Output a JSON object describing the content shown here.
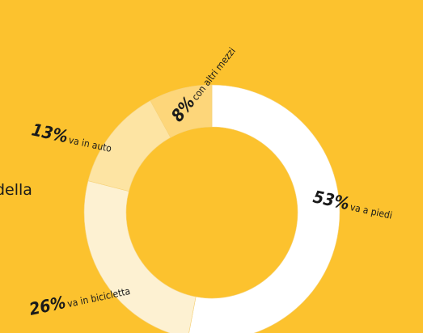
{
  "chart_data": {
    "type": "donut",
    "annotation": "della",
    "categories": [
      "va a piedi",
      "va in bicicletta",
      "va in auto",
      "con altri mezzi"
    ],
    "values": [
      53,
      26,
      13,
      8
    ],
    "value_labels": [
      "53%",
      "26%",
      "13%",
      "8%"
    ],
    "colors": [
      "#ffffff",
      "#fdf1d2",
      "#fde4a3",
      "#fdd67a"
    ],
    "background": "#fcc22e"
  }
}
